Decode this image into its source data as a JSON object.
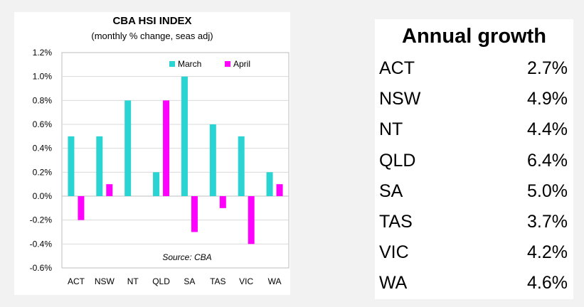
{
  "chart_data": {
    "type": "bar",
    "title": "CBA HSI INDEX",
    "subtitle": "(monthly % change, seas adj)",
    "categories": [
      "ACT",
      "NSW",
      "NT",
      "QLD",
      "SA",
      "TAS",
      "VIC",
      "WA"
    ],
    "series": [
      {
        "name": "March",
        "color": "#2ad4d2",
        "values": [
          0.5,
          0.5,
          0.8,
          0.2,
          1.0,
          0.6,
          0.5,
          0.2
        ]
      },
      {
        "name": "April",
        "color": "#ff00ff",
        "values": [
          -0.2,
          0.1,
          0.0,
          0.8,
          -0.3,
          -0.1,
          -0.4,
          0.1
        ]
      }
    ],
    "ylim": [
      -0.6,
      1.2
    ],
    "yticks": [
      1.2,
      1.0,
      0.8,
      0.6,
      0.4,
      0.2,
      0.0,
      -0.2,
      -0.4,
      -0.6
    ],
    "ytick_labels": [
      "1.2%",
      "1.0%",
      "0.8%",
      "0.6%",
      "0.4%",
      "0.2%",
      "0.0%",
      "-0.2%",
      "-0.4%",
      "-0.6%"
    ],
    "grid": true,
    "legend_position": "top-right",
    "annotation": "Source: CBA"
  },
  "growth_table": {
    "title": "Annual growth",
    "rows": [
      {
        "state": "ACT",
        "value": "2.7%"
      },
      {
        "state": "NSW",
        "value": "4.9%"
      },
      {
        "state": "NT",
        "value": "4.4%"
      },
      {
        "state": "QLD",
        "value": "6.4%"
      },
      {
        "state": "SA",
        "value": "5.0%"
      },
      {
        "state": "TAS",
        "value": "3.7%"
      },
      {
        "state": "VIC",
        "value": "4.2%"
      },
      {
        "state": "WA",
        "value": "4.6%"
      }
    ]
  }
}
